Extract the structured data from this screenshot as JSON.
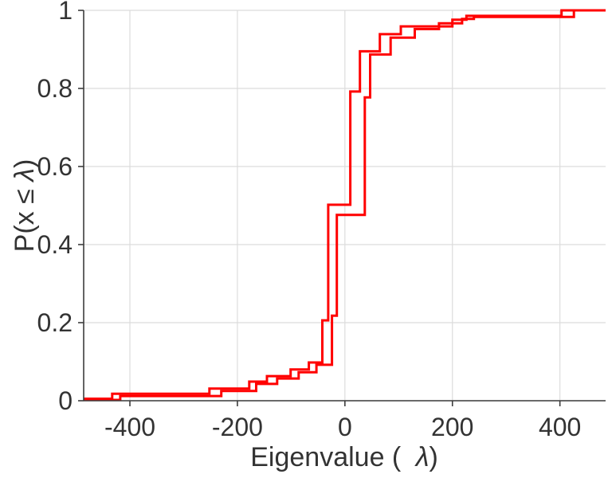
{
  "chart_data": {
    "type": "line",
    "subtype": "ecdf-stairs",
    "title": "",
    "xlabel": {
      "full": "Eigenvalue ( λ)",
      "pre": "Eigenvalue ( ",
      "lambda": "λ",
      "post": ")"
    },
    "ylabel": {
      "full": "P(x ≤ λ)",
      "pre": "P(x ≤ ",
      "lambda": "λ",
      "post": ")"
    },
    "xlim": [
      -486,
      485
    ],
    "ylim": [
      0,
      1
    ],
    "x_ticks": [
      -400,
      -200,
      0,
      200,
      400
    ],
    "x_tick_labels": [
      "-400",
      "-200",
      "0",
      "200",
      "400"
    ],
    "y_ticks": [
      0,
      0.2,
      0.4,
      0.6,
      0.8,
      1
    ],
    "y_tick_labels": [
      "0",
      "0.2",
      "0.4",
      "0.6",
      "0.8",
      "1"
    ],
    "grid": true,
    "legend_position": "none",
    "series": [
      {
        "name": "ecdf-curve-1",
        "start_y": 0.005,
        "steps": [
          [
            -433,
            0.018
          ],
          [
            -252,
            0.031
          ],
          [
            -178,
            0.049
          ],
          [
            -145,
            0.063
          ],
          [
            -101,
            0.08
          ],
          [
            -67,
            0.098
          ],
          [
            -42,
            0.206
          ],
          [
            -31,
            0.502
          ],
          [
            10,
            0.792
          ],
          [
            28,
            0.895
          ],
          [
            65,
            0.939
          ],
          [
            104,
            0.959
          ],
          [
            200,
            0.976
          ],
          [
            226,
            0.986
          ],
          [
            403,
            1.0
          ]
        ]
      },
      {
        "name": "ecdf-curve-2",
        "start_y": 0.002,
        "steps": [
          [
            -418,
            0.012
          ],
          [
            -230,
            0.025
          ],
          [
            -165,
            0.043
          ],
          [
            -126,
            0.057
          ],
          [
            -86,
            0.073
          ],
          [
            -53,
            0.092
          ],
          [
            -24,
            0.218
          ],
          [
            -15,
            0.476
          ],
          [
            37,
            0.777
          ],
          [
            47,
            0.887
          ],
          [
            85,
            0.93
          ],
          [
            130,
            0.952
          ],
          [
            175,
            0.967
          ],
          [
            218,
            0.978
          ],
          [
            240,
            0.983
          ],
          [
            426,
            1.0
          ]
        ]
      }
    ]
  },
  "styles": {
    "line_color": "#ff0000",
    "line_width": 3,
    "axis_color": "#3c3c3c",
    "grid_color": "#dcdcdc",
    "text_color": "#333333",
    "background": "#ffffff",
    "tick_length": 7
  }
}
